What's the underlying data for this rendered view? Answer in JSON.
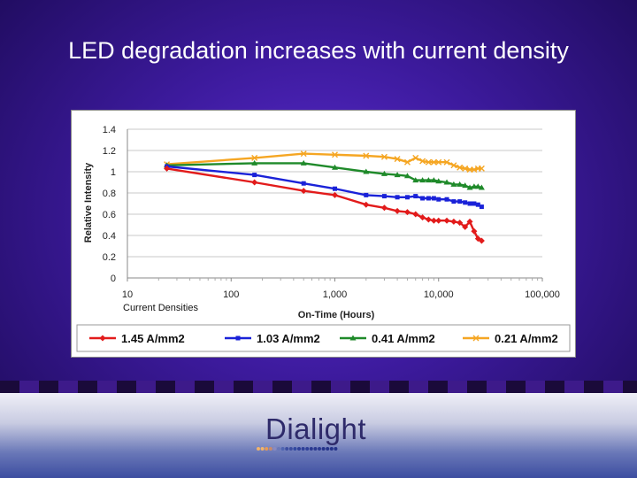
{
  "slide": {
    "title": "LED degradation increases with current density"
  },
  "logo": {
    "text": "Dialight"
  },
  "colors": {
    "background": "#3c1a9c",
    "series_red": "#e21b1b",
    "series_blue": "#1a22d8",
    "series_green": "#1f8a2a",
    "series_orange": "#f5a623"
  },
  "chart_data": {
    "type": "line",
    "xscale": "log",
    "xlabel": "On-Time (Hours)",
    "ylabel": "Relative Intensity",
    "annotation": "Current Densities",
    "xlim": [
      10,
      100000
    ],
    "ylim": [
      0,
      1.4
    ],
    "xticks": [
      "10",
      "100",
      "1,000",
      "10,000",
      "100,000"
    ],
    "yticks": [
      "0",
      "0.2",
      "0.4",
      "0.6",
      "0.8",
      "1",
      "1.2",
      "1.4"
    ],
    "grid": "horizontal",
    "legend": "bottom",
    "series": [
      {
        "name": "1.45 A/mm2",
        "color": "#e21b1b",
        "marker": "diamond",
        "x": [
          24,
          168,
          500,
          1000,
          2000,
          3000,
          4000,
          5000,
          6000,
          7000,
          8000,
          9000,
          10000,
          12000,
          14000,
          16000,
          18000,
          20000,
          22000,
          24000,
          26000
        ],
        "y": [
          1.03,
          0.9,
          0.82,
          0.78,
          0.69,
          0.66,
          0.63,
          0.62,
          0.6,
          0.57,
          0.55,
          0.54,
          0.54,
          0.54,
          0.53,
          0.52,
          0.48,
          0.53,
          0.44,
          0.37,
          0.35
        ]
      },
      {
        "name": "1.03 A/mm2",
        "color": "#1a22d8",
        "marker": "square",
        "x": [
          24,
          168,
          500,
          1000,
          2000,
          3000,
          4000,
          5000,
          6000,
          7000,
          8000,
          9000,
          10000,
          12000,
          14000,
          16000,
          18000,
          20000,
          22000,
          24000,
          26000
        ],
        "y": [
          1.05,
          0.97,
          0.89,
          0.84,
          0.78,
          0.77,
          0.76,
          0.76,
          0.77,
          0.75,
          0.75,
          0.75,
          0.74,
          0.74,
          0.72,
          0.72,
          0.71,
          0.7,
          0.7,
          0.69,
          0.67
        ]
      },
      {
        "name": "0.41 A/mm2",
        "color": "#1f8a2a",
        "marker": "triangle",
        "x": [
          24,
          168,
          500,
          1000,
          2000,
          3000,
          4000,
          5000,
          6000,
          7000,
          8000,
          9000,
          10000,
          12000,
          14000,
          16000,
          18000,
          20000,
          22000,
          24000,
          26000
        ],
        "y": [
          1.06,
          1.08,
          1.08,
          1.04,
          1.0,
          0.98,
          0.97,
          0.96,
          0.92,
          0.92,
          0.92,
          0.92,
          0.91,
          0.9,
          0.88,
          0.88,
          0.87,
          0.85,
          0.86,
          0.86,
          0.85
        ]
      },
      {
        "name": "0.21 A/mm2",
        "color": "#f5a623",
        "marker": "x",
        "x": [
          24,
          168,
          500,
          1000,
          2000,
          3000,
          4000,
          5000,
          6000,
          7000,
          8000,
          9000,
          10000,
          12000,
          14000,
          16000,
          18000,
          20000,
          22000,
          24000,
          26000
        ],
        "y": [
          1.07,
          1.13,
          1.17,
          1.16,
          1.15,
          1.14,
          1.12,
          1.09,
          1.13,
          1.1,
          1.09,
          1.09,
          1.09,
          1.09,
          1.06,
          1.04,
          1.03,
          1.02,
          1.02,
          1.03,
          1.03
        ]
      }
    ]
  }
}
